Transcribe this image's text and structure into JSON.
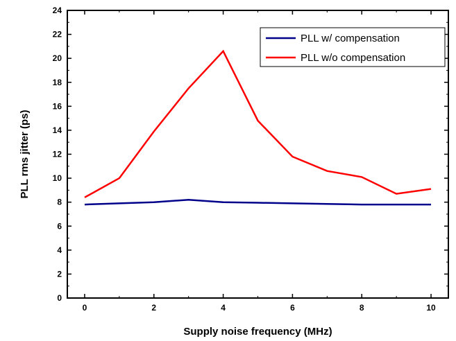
{
  "chart_data": {
    "type": "line",
    "xlabel": "Supply noise frequency (MHz)",
    "ylabel": "PLL rms jitter (ps)",
    "xlim": [
      -0.5,
      10.5
    ],
    "ylim": [
      0,
      24
    ],
    "xticks": [
      0,
      2,
      4,
      6,
      8,
      10
    ],
    "yticks": [
      0,
      2,
      4,
      6,
      8,
      10,
      12,
      14,
      16,
      18,
      20,
      22,
      24
    ],
    "grid": false,
    "legend_position": "top-right",
    "x": [
      0,
      1,
      2,
      3,
      4,
      5,
      6,
      7,
      8,
      9,
      10
    ],
    "series": [
      {
        "name": "PLL w/ compensation",
        "color": "#00008b",
        "values": [
          7.8,
          7.9,
          8.0,
          8.2,
          8.0,
          7.95,
          7.9,
          7.85,
          7.8,
          7.8,
          7.8
        ]
      },
      {
        "name": "PLL w/o compensation",
        "color": "#ff0000",
        "values": [
          8.4,
          10.0,
          13.9,
          17.5,
          20.6,
          14.8,
          11.8,
          10.6,
          10.1,
          8.7,
          9.1
        ]
      }
    ]
  }
}
